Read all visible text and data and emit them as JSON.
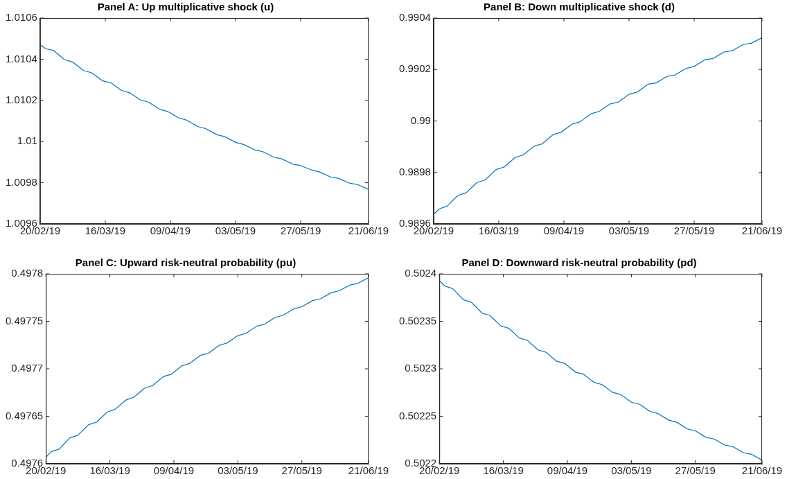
{
  "chart_data": [
    {
      "type": "line",
      "title": "Panel A: Up multiplicative shock (u)",
      "color": "#0072bd",
      "grid": false,
      "x": [
        "2019-02-20",
        "2019-02-22",
        "2019-02-25",
        "2019-03-01",
        "2019-03-04",
        "2019-03-08",
        "2019-03-11",
        "2019-03-15",
        "2019-03-18",
        "2019-03-22",
        "2019-03-25",
        "2019-03-29",
        "2019-04-01",
        "2019-04-05",
        "2019-04-08",
        "2019-04-12",
        "2019-04-15",
        "2019-04-19",
        "2019-04-22",
        "2019-04-26",
        "2019-04-29",
        "2019-05-03",
        "2019-05-06",
        "2019-05-10",
        "2019-05-13",
        "2019-05-17",
        "2019-05-20",
        "2019-05-24",
        "2019-05-27",
        "2019-05-31",
        "2019-06-03",
        "2019-06-07",
        "2019-06-10",
        "2019-06-14",
        "2019-06-17",
        "2019-06-21"
      ],
      "values": [
        1.010471,
        1.010451,
        1.010442,
        1.010398,
        1.010386,
        1.010345,
        1.010334,
        1.010295,
        1.010286,
        1.010248,
        1.010237,
        1.010202,
        1.010191,
        1.010157,
        1.010146,
        1.010115,
        1.010104,
        1.010073,
        1.010063,
        1.010034,
        1.010024,
        1.009996,
        1.009986,
        1.00996,
        1.009951,
        1.009925,
        1.009916,
        1.009891,
        1.009883,
        1.009862,
        1.009852,
        1.009828,
        1.009821,
        1.009798,
        1.009791,
        1.009768
      ],
      "xlim": [
        "2019-02-20",
        "2019-06-21"
      ],
      "xticks": [
        {
          "value": "2019-02-20",
          "label": "20/02/19"
        },
        {
          "value": "2019-03-16",
          "label": "16/03/19"
        },
        {
          "value": "2019-04-09",
          "label": "09/04/19"
        },
        {
          "value": "2019-05-03",
          "label": "03/05/19"
        },
        {
          "value": "2019-05-27",
          "label": "27/05/19"
        },
        {
          "value": "2019-06-21",
          "label": "21/06/19"
        }
      ],
      "ylim": [
        1.0096,
        1.0106
      ],
      "yticks": [
        1.0096,
        1.0098,
        1.01,
        1.0102,
        1.0104,
        1.0106
      ]
    },
    {
      "type": "line",
      "title": "Panel B: Down multiplicative shock (d)",
      "color": "#0072bd",
      "grid": false,
      "x": [
        "2019-02-20",
        "2019-02-22",
        "2019-02-25",
        "2019-03-01",
        "2019-03-04",
        "2019-03-08",
        "2019-03-11",
        "2019-03-15",
        "2019-03-18",
        "2019-03-22",
        "2019-03-25",
        "2019-03-29",
        "2019-04-01",
        "2019-04-05",
        "2019-04-08",
        "2019-04-12",
        "2019-04-15",
        "2019-04-19",
        "2019-04-22",
        "2019-04-26",
        "2019-04-29",
        "2019-05-03",
        "2019-05-06",
        "2019-05-10",
        "2019-05-13",
        "2019-05-17",
        "2019-05-20",
        "2019-05-24",
        "2019-05-27",
        "2019-05-31",
        "2019-06-03",
        "2019-06-07",
        "2019-06-10",
        "2019-06-14",
        "2019-06-17",
        "2019-06-21"
      ],
      "values": [
        0.989637,
        0.989658,
        0.989669,
        0.989711,
        0.989721,
        0.989761,
        0.989771,
        0.989811,
        0.989821,
        0.989858,
        0.989868,
        0.989902,
        0.989911,
        0.989947,
        0.989956,
        0.989988,
        0.989997,
        0.990028,
        0.990037,
        0.990066,
        0.990073,
        0.990104,
        0.990112,
        0.990143,
        0.990148,
        0.990173,
        0.990179,
        0.990204,
        0.990212,
        0.990238,
        0.990243,
        0.990268,
        0.990273,
        0.990297,
        0.990302,
        0.990324
      ],
      "xlim": [
        "2019-02-20",
        "2019-06-21"
      ],
      "xticks": [
        {
          "value": "2019-02-20",
          "label": "20/02/19"
        },
        {
          "value": "2019-03-16",
          "label": "16/03/19"
        },
        {
          "value": "2019-04-09",
          "label": "09/04/19"
        },
        {
          "value": "2019-05-03",
          "label": "03/05/19"
        },
        {
          "value": "2019-05-27",
          "label": "27/05/19"
        },
        {
          "value": "2019-06-21",
          "label": "21/06/19"
        }
      ],
      "ylim": [
        0.9896,
        0.9904
      ],
      "yticks": [
        0.9896,
        0.9898,
        0.99,
        0.9902,
        0.9904
      ]
    },
    {
      "type": "line",
      "title": "Panel C: Upward risk-neutral probability (pu)",
      "color": "#0072bd",
      "grid": false,
      "x": [
        "2019-02-20",
        "2019-02-22",
        "2019-02-25",
        "2019-03-01",
        "2019-03-04",
        "2019-03-08",
        "2019-03-11",
        "2019-03-15",
        "2019-03-18",
        "2019-03-22",
        "2019-03-25",
        "2019-03-29",
        "2019-04-01",
        "2019-04-05",
        "2019-04-08",
        "2019-04-12",
        "2019-04-15",
        "2019-04-19",
        "2019-04-22",
        "2019-04-26",
        "2019-04-29",
        "2019-05-03",
        "2019-05-06",
        "2019-05-10",
        "2019-05-13",
        "2019-05-17",
        "2019-05-20",
        "2019-05-24",
        "2019-05-27",
        "2019-05-31",
        "2019-06-03",
        "2019-06-07",
        "2019-06-10",
        "2019-06-14",
        "2019-06-17",
        "2019-06-21"
      ],
      "values": [
        0.4976068,
        0.4976127,
        0.4976154,
        0.4976273,
        0.49763,
        0.4976411,
        0.4976438,
        0.4976544,
        0.4976574,
        0.4976671,
        0.4976701,
        0.4976796,
        0.4976823,
        0.4976917,
        0.4976942,
        0.4977031,
        0.4977058,
        0.4977142,
        0.4977164,
        0.4977247,
        0.4977272,
        0.497735,
        0.4977372,
        0.4977448,
        0.4977469,
        0.4977542,
        0.4977564,
        0.4977632,
        0.4977653,
        0.4977718,
        0.4977737,
        0.4977802,
        0.4977821,
        0.4977881,
        0.49779,
        0.4977959
      ],
      "xlim": [
        "2019-02-20",
        "2019-06-21"
      ],
      "xticks": [
        {
          "value": "2019-02-20",
          "label": "20/02/19"
        },
        {
          "value": "2019-03-16",
          "label": "16/03/19"
        },
        {
          "value": "2019-04-09",
          "label": "09/04/19"
        },
        {
          "value": "2019-05-03",
          "label": "03/05/19"
        },
        {
          "value": "2019-05-27",
          "label": "27/05/19"
        },
        {
          "value": "2019-06-21",
          "label": "21/06/19"
        }
      ],
      "ylim": [
        0.4976,
        0.4978
      ],
      "yticks": [
        0.4976,
        0.49765,
        0.4977,
        0.49775,
        0.4978
      ]
    },
    {
      "type": "line",
      "title": "Panel D: Downward risk-neutral probability (pd)",
      "color": "#0072bd",
      "grid": false,
      "x": [
        "2019-02-20",
        "2019-02-22",
        "2019-02-25",
        "2019-03-01",
        "2019-03-04",
        "2019-03-08",
        "2019-03-11",
        "2019-03-15",
        "2019-03-18",
        "2019-03-22",
        "2019-03-25",
        "2019-03-29",
        "2019-04-01",
        "2019-04-05",
        "2019-04-08",
        "2019-04-12",
        "2019-04-15",
        "2019-04-19",
        "2019-04-22",
        "2019-04-26",
        "2019-04-29",
        "2019-05-03",
        "2019-05-06",
        "2019-05-10",
        "2019-05-13",
        "2019-05-17",
        "2019-05-20",
        "2019-05-24",
        "2019-05-27",
        "2019-05-31",
        "2019-06-03",
        "2019-06-07",
        "2019-06-10",
        "2019-06-14",
        "2019-06-17",
        "2019-06-21"
      ],
      "values": [
        0.5023928,
        0.5023872,
        0.5023844,
        0.5023727,
        0.50237,
        0.5023586,
        0.502356,
        0.5023452,
        0.5023427,
        0.5023324,
        0.5023299,
        0.5023199,
        0.5023174,
        0.5023079,
        0.5023057,
        0.5022965,
        0.5022943,
        0.5022857,
        0.5022834,
        0.5022751,
        0.5022729,
        0.5022648,
        0.5022628,
        0.5022551,
        0.5022528,
        0.5022459,
        0.5022437,
        0.5022367,
        0.5022347,
        0.5022278,
        0.5022261,
        0.5022197,
        0.5022181,
        0.5022117,
        0.50221,
        0.5022039
      ],
      "xlim": [
        "2019-02-20",
        "2019-06-21"
      ],
      "xticks": [
        {
          "value": "2019-02-20",
          "label": "20/02/19"
        },
        {
          "value": "2019-03-16",
          "label": "16/03/19"
        },
        {
          "value": "2019-04-09",
          "label": "09/04/19"
        },
        {
          "value": "2019-05-03",
          "label": "03/05/19"
        },
        {
          "value": "2019-05-27",
          "label": "27/05/19"
        },
        {
          "value": "2019-06-21",
          "label": "21/06/19"
        }
      ],
      "ylim": [
        0.5022,
        0.5024
      ],
      "yticks": [
        0.5022,
        0.50225,
        0.5023,
        0.50235,
        0.5024
      ]
    }
  ]
}
